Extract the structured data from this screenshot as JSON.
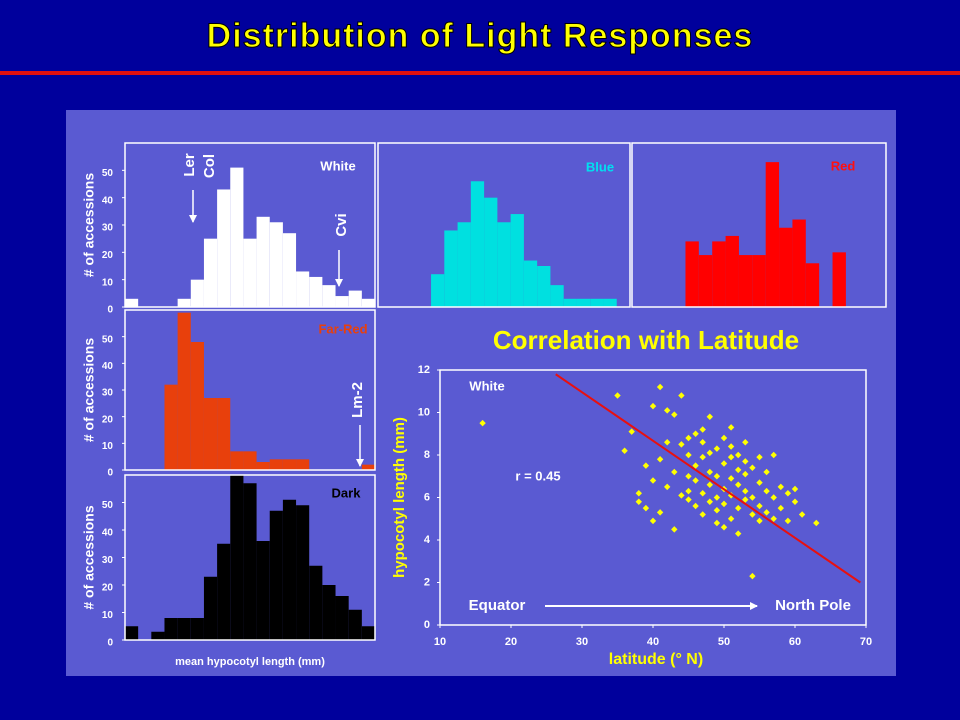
{
  "title": "Distribution of Light Responses",
  "chart_data": [
    {
      "type": "bar",
      "label": "White",
      "color": "#ffffff",
      "label_color": "#ffffff",
      "categories": [
        null,
        null,
        null,
        null,
        null,
        null,
        null,
        null,
        null,
        null,
        null,
        null,
        null,
        null,
        null,
        null,
        null,
        null,
        null
      ],
      "values": [
        3,
        0,
        0,
        0,
        3,
        10,
        25,
        43,
        51,
        25,
        33,
        31,
        27,
        13,
        11,
        8,
        4,
        6,
        3
      ],
      "ylim": [
        0,
        60
      ],
      "yticks": [
        0,
        10,
        20,
        30,
        40,
        50
      ],
      "ylabel": "# of accessions",
      "annotations": [
        "Ler",
        "Col",
        "Cvi"
      ]
    },
    {
      "type": "bar",
      "label": "Blue",
      "color": "#00e0e0",
      "label_color": "#00e0f0",
      "categories": [
        null,
        null,
        null,
        null,
        null,
        null,
        null,
        null,
        null,
        null,
        null,
        null,
        null,
        null,
        null,
        null,
        null,
        null,
        null
      ],
      "values": [
        0,
        0,
        0,
        0,
        12,
        28,
        31,
        46,
        40,
        31,
        34,
        17,
        15,
        8,
        3,
        3,
        3,
        3,
        0
      ],
      "ylim": [
        0,
        60
      ]
    },
    {
      "type": "bar",
      "label": "Red",
      "color": "#ff0000",
      "label_color": "#ff1010",
      "categories": [
        null,
        null,
        null,
        null,
        null,
        null,
        null,
        null,
        null,
        null,
        null,
        null,
        null,
        null,
        null,
        null,
        null,
        null,
        null
      ],
      "values": [
        0,
        0,
        0,
        0,
        24,
        19,
        24,
        26,
        19,
        19,
        53,
        29,
        32,
        16,
        0,
        20,
        0,
        0,
        0
      ],
      "ylim": [
        0,
        60
      ]
    },
    {
      "type": "bar",
      "label": "Far-Red",
      "color": "#e8400c",
      "label_color": "#e8400c",
      "categories": [
        null,
        null,
        null,
        null,
        null,
        null,
        null,
        null,
        null,
        null,
        null,
        null,
        null,
        null,
        null,
        null,
        null,
        null,
        null
      ],
      "values": [
        0,
        0,
        0,
        32,
        59,
        48,
        27,
        27,
        7,
        7,
        3,
        4,
        4,
        4,
        0,
        0,
        0,
        0,
        2
      ],
      "ylim": [
        0,
        60
      ],
      "yticks": [
        0,
        10,
        20,
        30,
        40,
        50
      ],
      "ylabel": "# of accessions",
      "annotations": [
        "Lm-2"
      ]
    },
    {
      "type": "bar",
      "label": "Dark",
      "color": "#000000",
      "label_color": "#000000",
      "categories": [
        null,
        null,
        null,
        null,
        null,
        null,
        null,
        null,
        null,
        null,
        null,
        null,
        null,
        null,
        null,
        null,
        null,
        null,
        null
      ],
      "values": [
        5,
        0,
        3,
        8,
        8,
        8,
        23,
        35,
        60,
        57,
        36,
        47,
        51,
        49,
        27,
        20,
        16,
        11,
        5
      ],
      "ylim": [
        0,
        60
      ],
      "yticks": [
        0,
        10,
        20,
        30,
        40,
        50
      ],
      "ylabel": "# of accessions",
      "xlabel": "mean hypocotyl length (mm)"
    },
    {
      "type": "scatter",
      "title": "Correlation with Latitude",
      "color": "#ffff00",
      "xlabel": "latitude (° N)",
      "ylabel": "hypocotyl length (mm)",
      "xlim": [
        10,
        70
      ],
      "xticks": [
        10,
        20,
        30,
        40,
        50,
        60,
        70
      ],
      "ylim": [
        0,
        12
      ],
      "yticks": [
        0,
        2,
        4,
        6,
        8,
        10,
        12
      ],
      "annotations": [
        "White",
        "r = 0.45",
        "Equator",
        "North Pole"
      ],
      "x": [
        16,
        35,
        36,
        37,
        38,
        38,
        39,
        39,
        40,
        40,
        40,
        41,
        41,
        41,
        42,
        42,
        42,
        43,
        43,
        43,
        44,
        44,
        44,
        45,
        45,
        45,
        45,
        46,
        46,
        46,
        46,
        47,
        47,
        47,
        47,
        47,
        48,
        48,
        48,
        48,
        48,
        49,
        49,
        49,
        49,
        49,
        50,
        50,
        50,
        50,
        50,
        51,
        51,
        51,
        51,
        51,
        51,
        52,
        52,
        52,
        52,
        52,
        53,
        53,
        53,
        53,
        53,
        54,
        54,
        54,
        54,
        55,
        55,
        55,
        55,
        56,
        56,
        56,
        57,
        57,
        57,
        58,
        58,
        59,
        59,
        60,
        60,
        61,
        63,
        45
      ],
      "y": [
        9.5,
        10.8,
        8.2,
        9.1,
        5.8,
        6.2,
        5.5,
        7.5,
        4.9,
        6.8,
        10.3,
        11.2,
        7.8,
        5.3,
        8.6,
        6.5,
        10.1,
        9.9,
        7.2,
        4.5,
        8.5,
        6.1,
        10.8,
        7.0,
        6.3,
        5.9,
        8.8,
        9.0,
        6.8,
        5.6,
        7.5,
        9.2,
        7.9,
        6.2,
        5.2,
        8.6,
        8.1,
        6.6,
        5.8,
        7.2,
        9.8,
        7.0,
        6.0,
        5.4,
        8.3,
        4.8,
        7.6,
        6.4,
        5.7,
        8.8,
        4.6,
        7.9,
        6.9,
        6.1,
        5.0,
        8.4,
        9.3,
        7.3,
        6.6,
        5.5,
        8.0,
        4.3,
        7.1,
        6.3,
        5.9,
        8.6,
        7.7,
        7.4,
        6.0,
        5.2,
        2.3,
        6.7,
        5.6,
        7.9,
        4.9,
        6.3,
        5.3,
        7.2,
        6.0,
        5.0,
        8.0,
        6.5,
        5.5,
        6.2,
        4.9,
        5.8,
        6.4,
        5.2,
        4.8,
        8.0
      ],
      "fit": {
        "color": "#e81010",
        "x": [
          26.3,
          69.2
        ],
        "y": [
          11.8,
          2.0
        ]
      }
    }
  ]
}
